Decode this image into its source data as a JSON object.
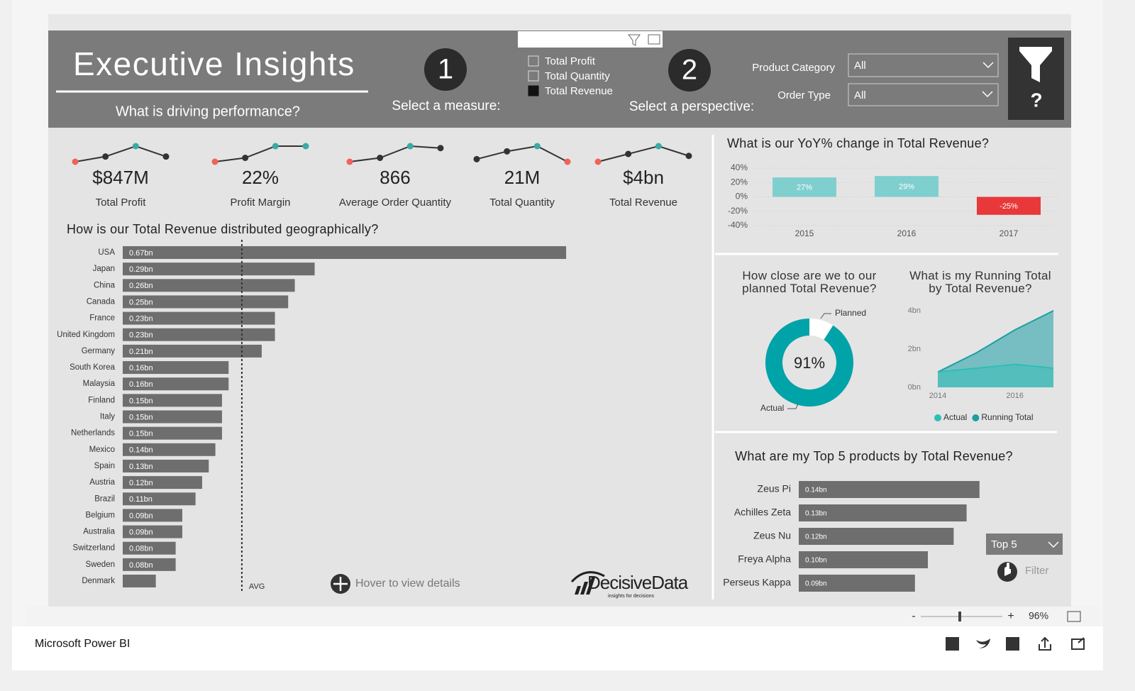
{
  "header": {
    "title": "Executive Insights",
    "subtitle": "What is driving performance?",
    "step1": "1",
    "step1_label": "Select a measure:",
    "measures": [
      {
        "label": "Total Profit",
        "selected": false
      },
      {
        "label": "Total Quantity",
        "selected": false
      },
      {
        "label": "Total Revenue",
        "selected": true
      }
    ],
    "step2": "2",
    "step2_label": "Select a perspective:",
    "filters": [
      {
        "label": "Product Category",
        "value": "All"
      },
      {
        "label": "Order Type",
        "value": "All"
      }
    ],
    "help": "?"
  },
  "kpis": [
    {
      "value": "$847M",
      "label": "Total Profit",
      "trend": [
        1,
        2,
        4,
        2
      ]
    },
    {
      "value": "22%",
      "label": "Profit Margin",
      "trend": [
        1,
        2,
        5,
        5
      ]
    },
    {
      "value": "866",
      "label": "Average Order Quantity",
      "trend": [
        1,
        2,
        5,
        4.5
      ]
    },
    {
      "value": "21M",
      "label": "Total Quantity",
      "trend": [
        2,
        5,
        7,
        1
      ]
    },
    {
      "value": "$4bn",
      "label": "Total Revenue",
      "trend": [
        1,
        3,
        5,
        2.5
      ]
    }
  ],
  "chart_data": [
    {
      "type": "bar",
      "orientation": "horizontal",
      "title": "How is our Total Revenue distributed geographically?",
      "categories": [
        "USA",
        "Japan",
        "China",
        "Canada",
        "France",
        "United Kingdom",
        "Germany",
        "South Korea",
        "Malaysia",
        "Finland",
        "Italy",
        "Netherlands",
        "Mexico",
        "Spain",
        "Austria",
        "Brazil",
        "Belgium",
        "Australia",
        "Switzerland",
        "Sweden",
        "Denmark"
      ],
      "values": [
        0.67,
        0.29,
        0.26,
        0.25,
        0.23,
        0.23,
        0.21,
        0.16,
        0.16,
        0.15,
        0.15,
        0.15,
        0.14,
        0.13,
        0.12,
        0.11,
        0.09,
        0.09,
        0.08,
        0.08,
        0.05
      ],
      "value_labels": [
        "0.67bn",
        "0.29bn",
        "0.26bn",
        "0.25bn",
        "0.23bn",
        "0.23bn",
        "0.21bn",
        "0.16bn",
        "0.16bn",
        "0.15bn",
        "0.15bn",
        "0.15bn",
        "0.14bn",
        "0.13bn",
        "0.12bn",
        "0.11bn",
        "0.09bn",
        "0.09bn",
        "0.08bn",
        "0.08bn",
        null
      ],
      "color": "#6e6e6e",
      "xlim": [
        0,
        0.88
      ],
      "reference_line": {
        "label": "AVG",
        "value": 0.18
      }
    },
    {
      "type": "bar",
      "title": "What is our YoY% change in Total Revenue?",
      "categories": [
        "2015",
        "2016",
        "2017"
      ],
      "values": [
        27,
        29,
        -25
      ],
      "value_labels": [
        "27%",
        "29%",
        "-25%"
      ],
      "colors": [
        "#7fcfcf",
        "#7fcfcf",
        "#e8383a"
      ],
      "ylim": [
        -40,
        40
      ],
      "yticks": [
        {
          "value": 40,
          "label": "40%"
        },
        {
          "value": 20,
          "label": "20%"
        },
        {
          "value": 0,
          "label": "0%"
        },
        {
          "value": -20,
          "label": "-20%"
        },
        {
          "value": -40,
          "label": "-40%"
        }
      ],
      "grid": true
    },
    {
      "type": "donut",
      "title": "How close are we to our planned Total Revenue?",
      "categories": [
        "Actual",
        "Planned"
      ],
      "values": [
        91,
        9
      ],
      "colors": [
        "#00a3a8",
        "#ffffff"
      ],
      "center_label": "91%"
    },
    {
      "type": "area",
      "title": "What is my Running Total by Total Revenue?",
      "x": [
        2014,
        2015,
        2016,
        2017
      ],
      "series": [
        {
          "name": "Running Total",
          "color": "#1b9fa4",
          "values": [
            0.8,
            1.8,
            3.0,
            4.0
          ]
        },
        {
          "name": "Actual",
          "color": "#2cbfb5",
          "values": [
            0.8,
            1.0,
            1.2,
            1.0
          ]
        }
      ],
      "xlim": [
        2014,
        2017
      ],
      "xticks": [
        2014,
        2016
      ],
      "ylim": [
        0,
        4
      ],
      "yticks": [
        {
          "value": 0,
          "label": "0bn"
        },
        {
          "value": 2,
          "label": "2bn"
        },
        {
          "value": 4,
          "label": "4bn"
        }
      ]
    },
    {
      "type": "bar",
      "orientation": "horizontal",
      "title": "What are my Top 5 products by Total Revenue?",
      "categories": [
        "Zeus Pi",
        "Achilles Zeta",
        "Zeus Nu",
        "Freya Alpha",
        "Perseus Kappa"
      ],
      "values": [
        0.14,
        0.13,
        0.12,
        0.1,
        0.09
      ],
      "value_labels": [
        "0.14bn",
        "0.13bn",
        "0.12bn",
        "0.10bn",
        "0.09bn"
      ],
      "color": "#6e6e6e",
      "xlim": [
        0,
        0.2
      ]
    }
  ],
  "controls": {
    "hover_hint": "Hover to view details",
    "top_n": "Top 5",
    "filter": "Filter"
  },
  "brand": {
    "name": "DecisiveData",
    "tagline": "insights for decisions"
  },
  "footer": {
    "zoom_out": "-",
    "zoom_in": "+",
    "zoom": "96%",
    "app": "Microsoft Power BI"
  }
}
